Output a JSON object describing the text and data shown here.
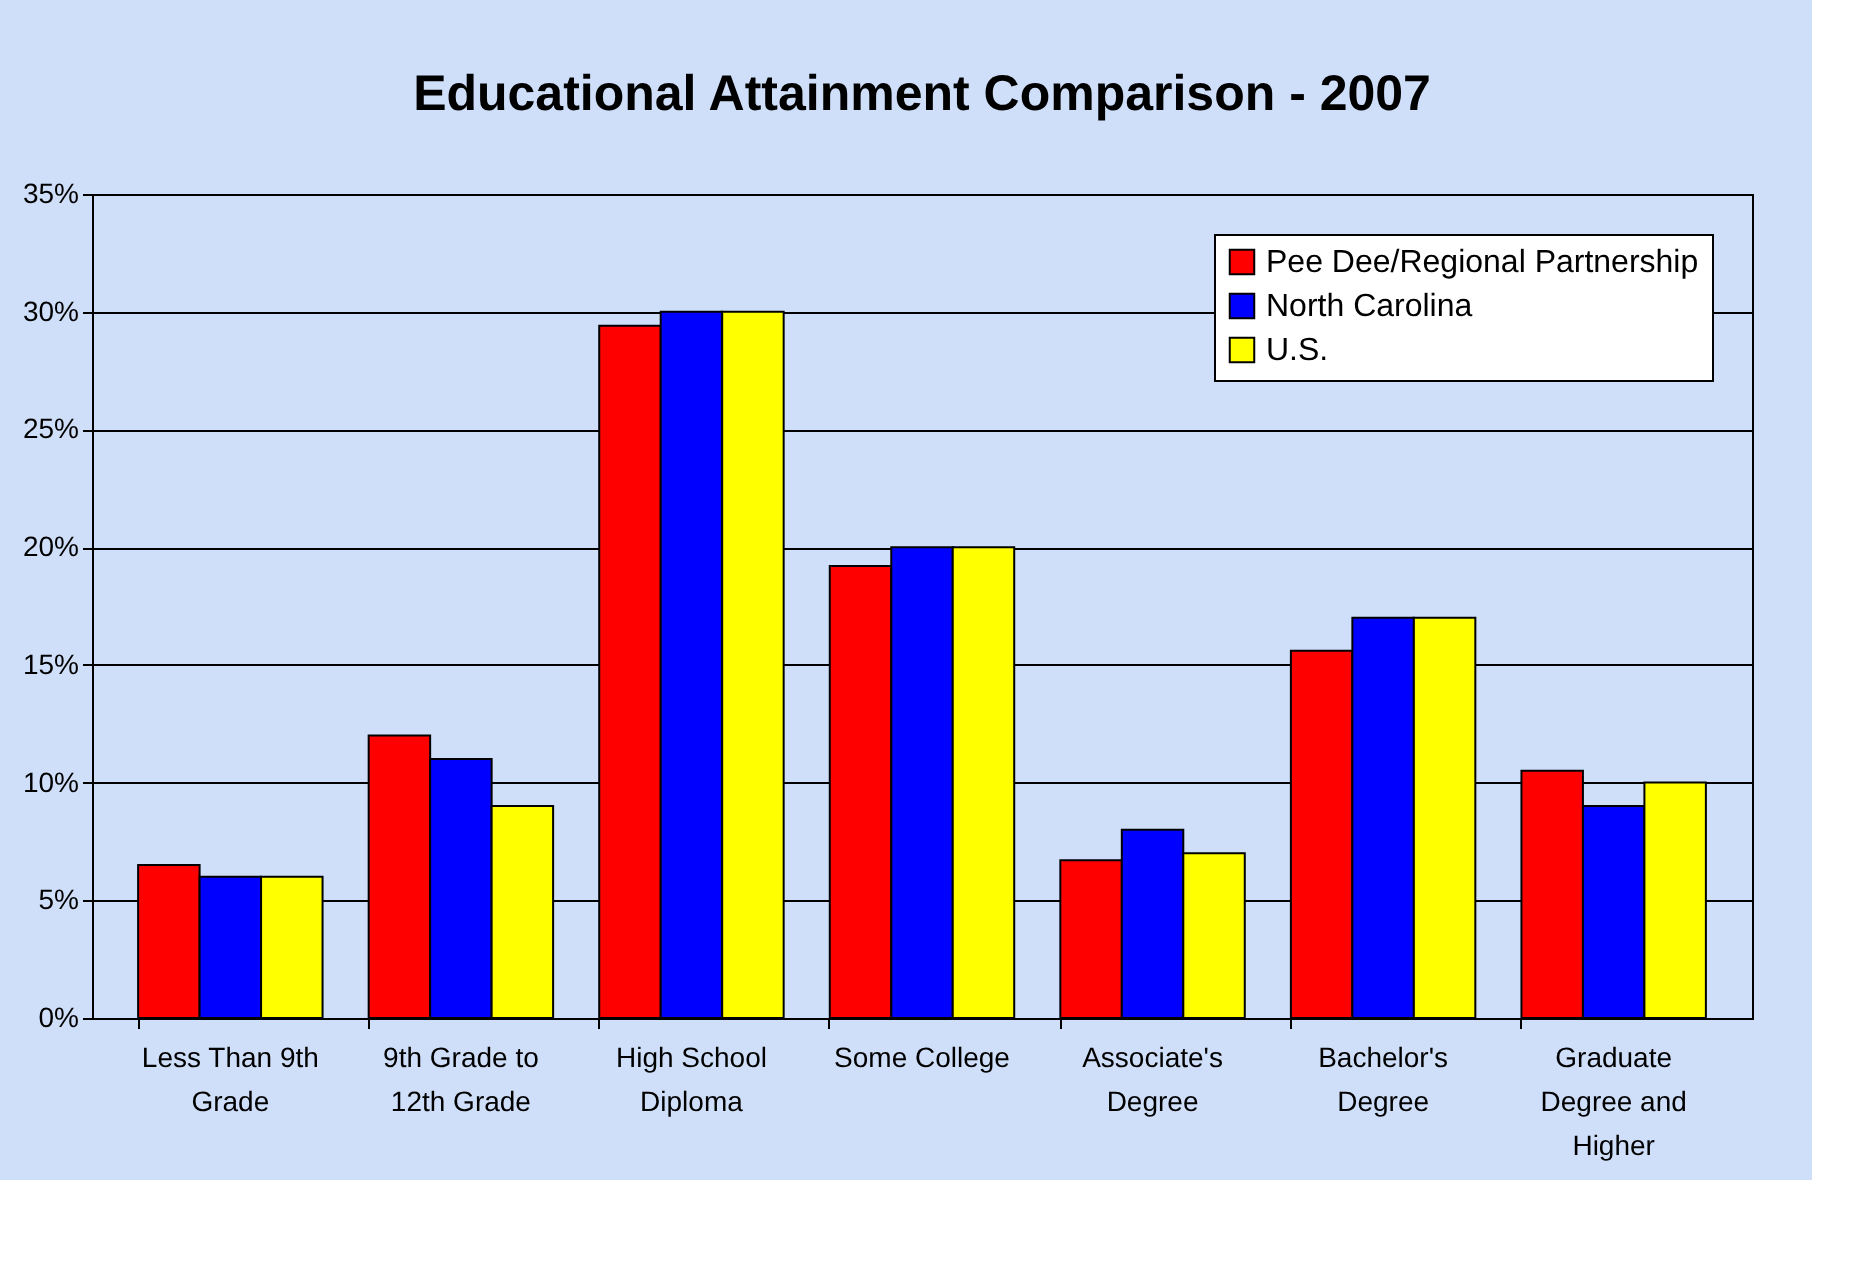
{
  "chart_data": {
    "type": "bar",
    "title": "Educational Attainment Comparison - 2007",
    "categories": [
      "Less Than 9th Grade",
      "9th Grade to 12th Grade",
      "High School Diploma",
      "Some College",
      "Associate's Degree",
      "Bachelor's Degree",
      "Graduate Degree and Higher"
    ],
    "series": [
      {
        "name": "Pee Dee/Regional Partnership",
        "color": "#ff0000",
        "values": [
          6.5,
          12,
          29.4,
          19.2,
          6.7,
          15.6,
          10.5
        ]
      },
      {
        "name": "North Carolina",
        "color": "#0000ff",
        "values": [
          6,
          11,
          30,
          20,
          8,
          17,
          9
        ]
      },
      {
        "name": "U.S.",
        "color": "#ffff00",
        "values": [
          6,
          9,
          30,
          20,
          7,
          17,
          10
        ]
      }
    ],
    "ylim": [
      0,
      35
    ],
    "yticks": [
      {
        "value": 0,
        "label": "0%"
      },
      {
        "value": 5,
        "label": "5%"
      },
      {
        "value": 10,
        "label": "10%"
      },
      {
        "value": 15,
        "label": "15%"
      },
      {
        "value": 20,
        "label": "20%"
      },
      {
        "value": 25,
        "label": "25%"
      },
      {
        "value": 30,
        "label": "30%"
      },
      {
        "value": 35,
        "label": "35%"
      }
    ],
    "grid": "y",
    "legend": "top right"
  }
}
